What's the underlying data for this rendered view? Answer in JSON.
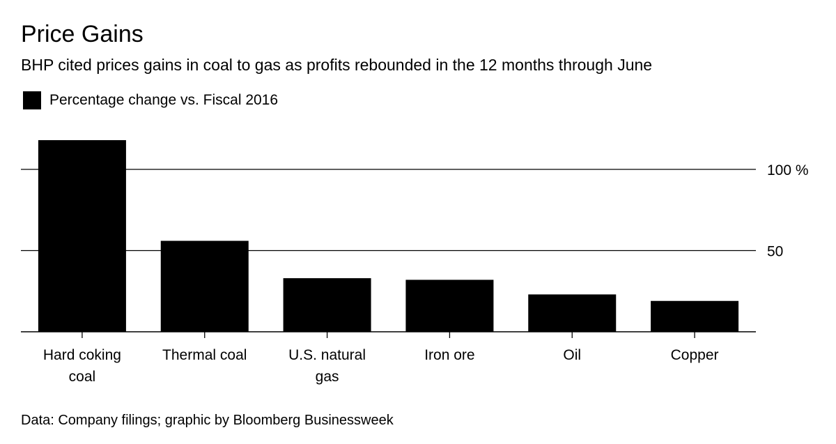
{
  "chart_data": {
    "type": "bar",
    "title": "Price Gains",
    "subtitle": "BHP cited prices gains in coal to gas as profits rebounded in the 12 months through June",
    "categories": [
      "Hard coking coal",
      "Thermal coal",
      "U.S. natural gas",
      "Iron ore",
      "Oil",
      "Copper"
    ],
    "series": [
      {
        "name": "Percentage change vs. Fiscal 2016",
        "values": [
          118,
          56,
          33,
          32,
          23,
          19
        ]
      }
    ],
    "ylim": [
      0,
      120
    ],
    "yticks": [
      {
        "value": 50,
        "label": "50"
      },
      {
        "value": 100,
        "label": "100 %"
      }
    ],
    "grid": true,
    "legend_position": "top-left",
    "bar_color": "#000000",
    "source": "Data: Company filings; graphic by Bloomberg Businessweek"
  }
}
